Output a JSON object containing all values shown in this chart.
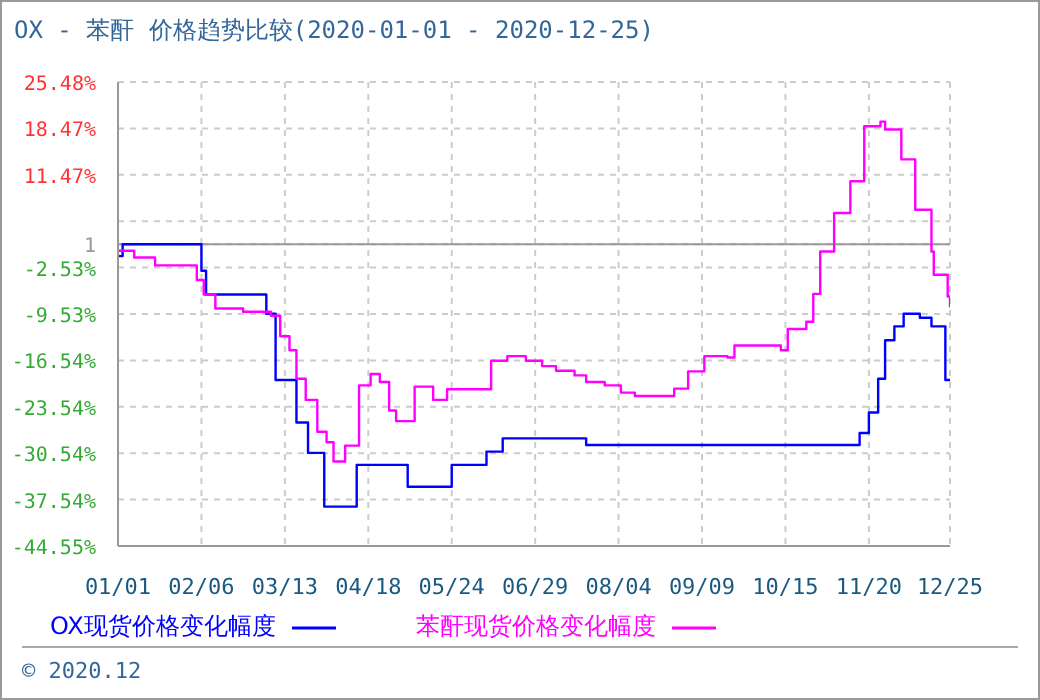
{
  "chart_data": {
    "type": "step",
    "title": "OX - 苯酐 价格趋势比较(2020-01-01 - 2020-12-25)",
    "annotations": [
      "© 2020.12"
    ],
    "xlim": [
      "2020-01-01",
      "2020-12-25"
    ],
    "xticks": [
      {
        "value": "2020-01-01",
        "label": "01/01"
      },
      {
        "value": "2020-02-06",
        "label": "02/06"
      },
      {
        "value": "2020-03-13",
        "label": "03/13"
      },
      {
        "value": "2020-04-18",
        "label": "04/18"
      },
      {
        "value": "2020-05-24",
        "label": "05/24"
      },
      {
        "value": "2020-06-29",
        "label": "06/29"
      },
      {
        "value": "2020-08-04",
        "label": "08/04"
      },
      {
        "value": "2020-09-09",
        "label": "09/09"
      },
      {
        "value": "2020-10-15",
        "label": "10/15"
      },
      {
        "value": "2020-11-20",
        "label": "11/20"
      },
      {
        "value": "2020-12-25",
        "label": "12/25"
      }
    ],
    "ylim": [
      -44.55,
      25.48
    ],
    "yticks": [
      {
        "value": 25.48,
        "label": "25.48%"
      },
      {
        "value": 18.47,
        "label": "18.47%"
      },
      {
        "value": 11.47,
        "label": "11.47%"
      },
      {
        "value": 4.47,
        "label": null
      },
      {
        "value": 1,
        "label": "1"
      },
      {
        "value": -2.53,
        "label": "-2.53%"
      },
      {
        "value": -9.53,
        "label": "-9.53%"
      },
      {
        "value": -16.54,
        "label": "-16.54%"
      },
      {
        "value": -23.54,
        "label": "-23.54%"
      },
      {
        "value": -30.54,
        "label": "-30.54%"
      },
      {
        "value": -37.54,
        "label": "-37.54%"
      },
      {
        "value": -44.55,
        "label": "-44.55%"
      }
    ],
    "ref_lines": [
      {
        "axis": "y",
        "value": 1,
        "color": "#999999"
      }
    ],
    "grid": true,
    "legend": "bottom",
    "marker": "none",
    "line_style": "solid",
    "series": [
      {
        "name": "OX现货价格变化幅度",
        "color": "#0000ff",
        "x": [
          "2020-01-01",
          "2020-01-03",
          "2020-02-06",
          "2020-02-08",
          "2020-03-05",
          "2020-03-09",
          "2020-03-18",
          "2020-03-23",
          "2020-03-30",
          "2020-04-13",
          "2020-05-05",
          "2020-05-24",
          "2020-06-08",
          "2020-06-15",
          "2020-07-21",
          "2020-11-16",
          "2020-11-20",
          "2020-11-24",
          "2020-11-27",
          "2020-12-01",
          "2020-12-05",
          "2020-12-12",
          "2020-12-17",
          "2020-12-23",
          "2020-12-25"
        ],
        "values": [
          -0.8,
          1,
          -3,
          -6.6,
          -9.5,
          -19.5,
          -25.9,
          -30.5,
          -38.6,
          -32.3,
          -35.6,
          -32.3,
          -30.3,
          -28.3,
          -29.3,
          -27.5,
          -24.4,
          -19.3,
          -13.5,
          -11.4,
          -9.5,
          -10.1,
          -11.4,
          -19.5,
          -19.5
        ]
      },
      {
        "name": "苯酐现货价格变化幅度",
        "color": "#ff00ff",
        "x": [
          "2020-01-01",
          "2020-01-08",
          "2020-01-17",
          "2020-02-04",
          "2020-02-07",
          "2020-02-12",
          "2020-02-24",
          "2020-03-07",
          "2020-03-11",
          "2020-03-15",
          "2020-03-18",
          "2020-03-22",
          "2020-03-27",
          "2020-03-31",
          "2020-04-03",
          "2020-04-08",
          "2020-04-14",
          "2020-04-19",
          "2020-04-23",
          "2020-04-27",
          "2020-04-30",
          "2020-05-08",
          "2020-05-16",
          "2020-05-22",
          "2020-06-10",
          "2020-06-17",
          "2020-06-25",
          "2020-07-02",
          "2020-07-08",
          "2020-07-16",
          "2020-07-21",
          "2020-07-29",
          "2020-08-05",
          "2020-08-11",
          "2020-08-28",
          "2020-09-03",
          "2020-09-10",
          "2020-09-20",
          "2020-09-23",
          "2020-10-13",
          "2020-10-16",
          "2020-10-24",
          "2020-10-27",
          "2020-10-30",
          "2020-11-05",
          "2020-11-12",
          "2020-11-18",
          "2020-11-25",
          "2020-11-27",
          "2020-12-04",
          "2020-12-10",
          "2020-12-17",
          "2020-12-18",
          "2020-12-24",
          "2020-12-25"
        ],
        "values": [
          0,
          -1,
          -2.2,
          -4.4,
          -6.6,
          -8.7,
          -9.2,
          -9.8,
          -12.9,
          -15,
          -19.3,
          -22.5,
          -27.3,
          -28.9,
          -31.8,
          -29.4,
          -20.3,
          -18.6,
          -19.8,
          -24.1,
          -25.7,
          -20.5,
          -22.5,
          -20.9,
          -16.6,
          -15.9,
          -16.6,
          -17.4,
          -18.1,
          -18.8,
          -19.8,
          -20.3,
          -21.4,
          -21.9,
          -20.8,
          -18.2,
          -15.9,
          -16.1,
          -14.3,
          -15,
          -11.8,
          -10.7,
          -6.5,
          -0.1,
          5.7,
          10.5,
          18.8,
          19.5,
          18.3,
          13.8,
          6.2,
          -0.1,
          -3.6,
          -6.9,
          -8.5
        ]
      }
    ]
  }
}
